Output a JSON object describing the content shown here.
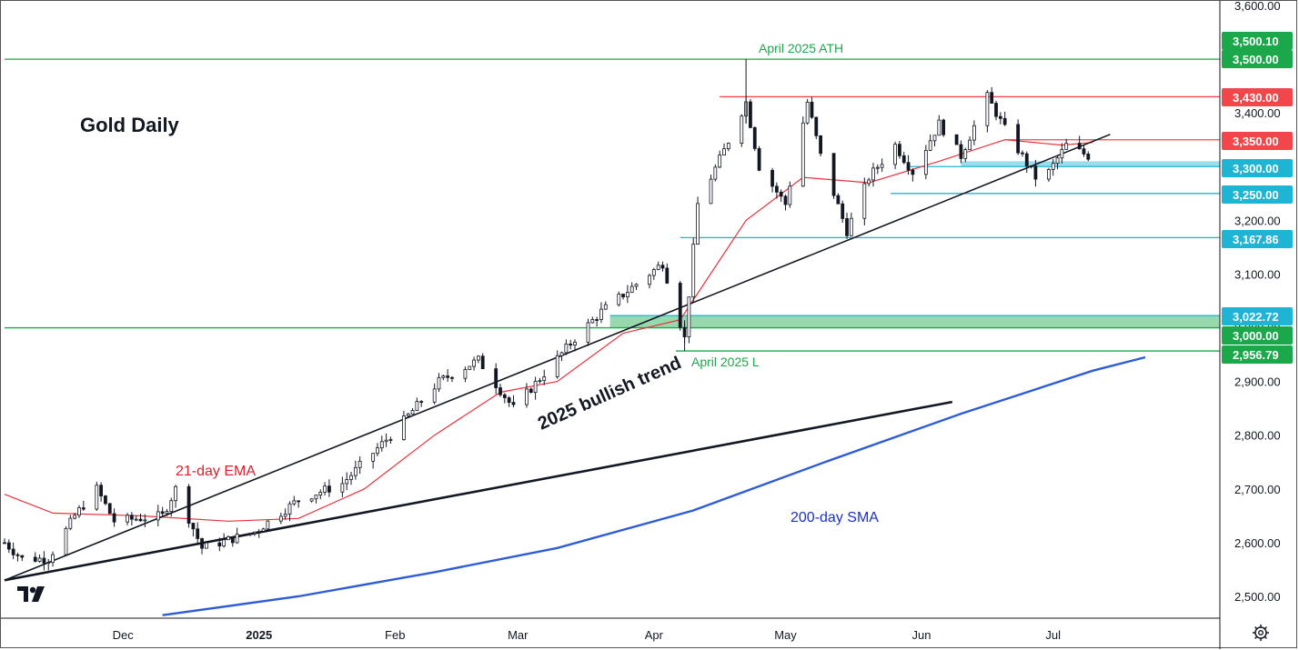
{
  "chart_data": {
    "type": "candlestick",
    "title": "Gold Daily",
    "ylim": [
      2450,
      3620
    ],
    "y_ticks": [
      2500,
      2600,
      2700,
      2800,
      2900,
      3000,
      3100,
      3200,
      3300,
      3400,
      3500,
      3600
    ],
    "y_tick_labels": [
      "2,500.00",
      "2,600.00",
      "2,700.00",
      "2,800.00",
      "2,900.00",
      "3,000.00",
      "3,100.00",
      "3,200.00",
      "3,300.00",
      "3,400.00",
      "3,500.00",
      "3,600.00"
    ],
    "x_labels": [
      "Dec",
      "2025",
      "Feb",
      "Mar",
      "Apr",
      "May",
      "Jun",
      "Jul"
    ],
    "x_label_dates": [
      "2024-12-01",
      "2025-01-01",
      "2025-02-01",
      "2025-03-01",
      "2025-04-01",
      "2025-05-01",
      "2025-06-01",
      "2025-07-01"
    ],
    "x_range": [
      "2024-11-04",
      "2025-08-08"
    ],
    "grid": false,
    "price_levels": [
      {
        "label": "3,500.10",
        "value": 3500.1,
        "color": "#1aa84a"
      },
      {
        "label": "3,500.00",
        "value": 3500,
        "color": "#1aa84a"
      },
      {
        "label": "3,430.00",
        "value": 3430,
        "color": "#f2464b"
      },
      {
        "label": "3,350.00",
        "value": 3350,
        "color": "#f2464b"
      },
      {
        "label": "3,300.00",
        "value": 3300,
        "color": "#1eb4d4"
      },
      {
        "label": "3,250.00",
        "value": 3250,
        "color": "#1eb4d4"
      },
      {
        "label": "3,167.86",
        "value": 3167.86,
        "color": "#1eb4d4"
      },
      {
        "label": "3,022.72",
        "value": 3022.72,
        "color": "#1eb4d4"
      },
      {
        "label": "3,000.00",
        "value": 3000,
        "color": "#1aa84a"
      },
      {
        "label": "2,956.79",
        "value": 2956.79,
        "color": "#1aa84a"
      }
    ],
    "zones": [
      {
        "from": 3000,
        "to": 3022.72,
        "color": "#1aa84a"
      },
      {
        "from": 3300,
        "to": 3310,
        "color": "#1eb4d4"
      }
    ],
    "annotations": [
      {
        "text": "April 2025 ATH",
        "color": "#1aa84a"
      },
      {
        "text": "April 2025 L",
        "color": "#1aa84a"
      },
      {
        "text": "2025 bullish trend",
        "color": "#131722"
      },
      {
        "text": "21-day EMA",
        "color": "#e01e2c"
      },
      {
        "text": "200-day SMA",
        "color": "#1a2fcf"
      }
    ],
    "trendlines": [
      {
        "name": "2025 bullish trend",
        "from": [
          "2024-11-04",
          2530
        ],
        "to": [
          "2025-07-14",
          3360
        ]
      },
      {
        "name": "",
        "from": [
          "2024-11-04",
          2530
        ],
        "to": [
          "2025-06-08",
          2862
        ]
      }
    ],
    "ema21": [
      [
        "2024-11-04",
        2690
      ],
      [
        "2024-11-15",
        2655
      ],
      [
        "2024-12-05",
        2650
      ],
      [
        "2024-12-25",
        2640
      ],
      [
        "2025-01-10",
        2645
      ],
      [
        "2025-01-25",
        2700
      ],
      [
        "2025-02-10",
        2800
      ],
      [
        "2025-02-25",
        2880
      ],
      [
        "2025-03-10",
        2900
      ],
      [
        "2025-03-25",
        2990
      ],
      [
        "2025-04-07",
        3015
      ],
      [
        "2025-04-22",
        3200
      ],
      [
        "2025-05-05",
        3280
      ],
      [
        "2025-05-20",
        3270
      ],
      [
        "2025-06-05",
        3310
      ],
      [
        "2025-06-20",
        3350
      ],
      [
        "2025-07-03",
        3340
      ],
      [
        "2025-07-10",
        3345
      ]
    ],
    "sma200": [
      [
        "2024-12-10",
        2465
      ],
      [
        "2025-01-10",
        2500
      ],
      [
        "2025-02-10",
        2545
      ],
      [
        "2025-03-10",
        2590
      ],
      [
        "2025-04-10",
        2660
      ],
      [
        "2025-05-10",
        2750
      ],
      [
        "2025-06-10",
        2840
      ],
      [
        "2025-07-10",
        2920
      ],
      [
        "2025-07-22",
        2945
      ]
    ]
  }
}
